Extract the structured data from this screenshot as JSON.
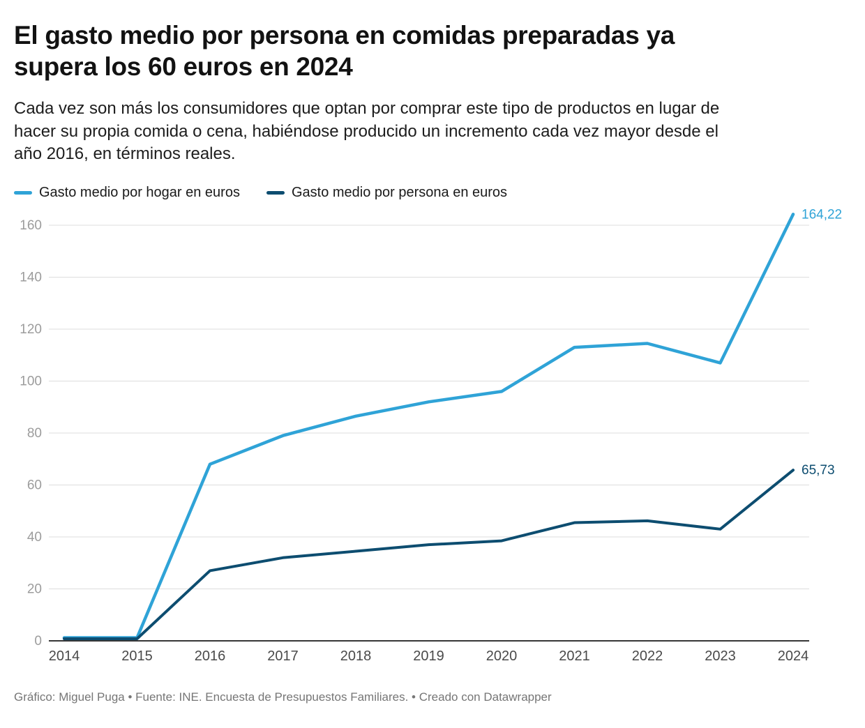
{
  "header": {
    "title": "El gasto medio por persona en comidas preparadas ya supera los 60 euros en 2024",
    "subtitle": "Cada vez son más los consumidores que optan por comprar este tipo de productos en lugar de hacer su propia comida o cena, habiéndose producido un incremento cada vez mayor desde el año 2016, en términos reales."
  },
  "legend": [
    {
      "label": "Gasto medio por hogar en euros",
      "color": "#2fa3d7"
    },
    {
      "label": "Gasto medio por persona en euros",
      "color": "#0d4d70"
    }
  ],
  "chart_data": {
    "type": "line",
    "x": [
      "2014",
      "2015",
      "2016",
      "2017",
      "2018",
      "2019",
      "2020",
      "2021",
      "2022",
      "2023",
      "2024"
    ],
    "series": [
      {
        "name": "Gasto medio por hogar en euros",
        "color": "#2fa3d7",
        "values": [
          1.2,
          1.2,
          68,
          79,
          86.5,
          92,
          96,
          113,
          114.5,
          107,
          164.22
        ],
        "end_label": "164,22"
      },
      {
        "name": "Gasto medio por persona en euros",
        "color": "#0d4d70",
        "values": [
          0.8,
          0.8,
          27,
          32,
          34.5,
          37,
          38.5,
          45.5,
          46.2,
          43,
          65.73
        ],
        "end_label": "65,73"
      }
    ],
    "title": "El gasto medio por persona en comidas preparadas ya supera los 60 euros en 2024",
    "xlabel": "",
    "ylabel": "",
    "ylim": [
      0,
      160
    ],
    "yticks": [
      0,
      20,
      40,
      60,
      80,
      100,
      120,
      140,
      160
    ],
    "grid": true,
    "legend_position": "top",
    "colors": {
      "gridline": "#dddddd",
      "baseline": "#1a1a1a",
      "y_tick_label": "#9c9c9c",
      "x_tick_label": "#4a4a4a"
    }
  },
  "footer": {
    "text": "Gráfico: Miguel Puga • Fuente: INE. Encuesta de Presupuestos Familiares. • Creado con Datawrapper"
  }
}
